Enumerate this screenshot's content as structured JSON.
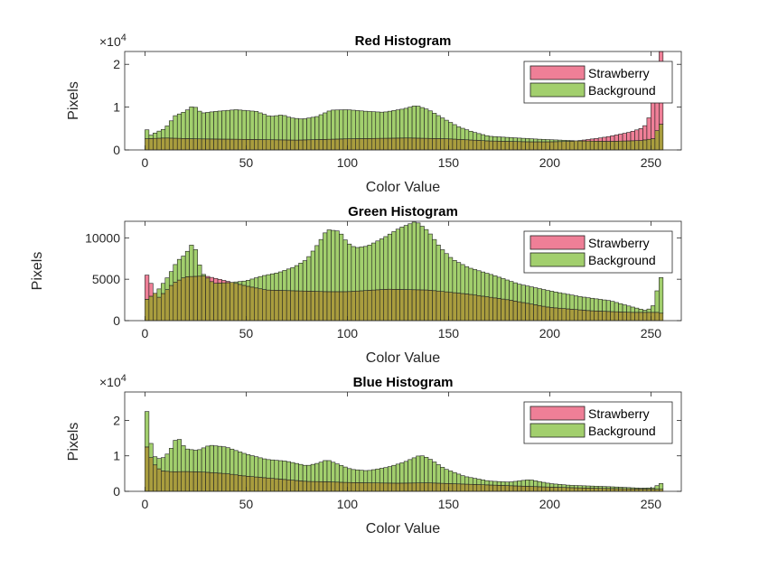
{
  "colors": {
    "strawberry": "#ef7f97",
    "background": "#a2cf6d",
    "overlap": "#a99d3e",
    "axis": "#262626",
    "edge": "#222222"
  },
  "chart_data": [
    {
      "type": "bar",
      "title": "Red Histogram",
      "xlabel": "Color Value",
      "ylabel": "Pixels",
      "y_exponent_label": "×10",
      "y_exponent_power": "4",
      "xlim": [
        -10,
        265
      ],
      "ylim": [
        0,
        23000
      ],
      "xticks": [
        0,
        50,
        100,
        150,
        200,
        250
      ],
      "yticks": [
        0,
        10000,
        20000
      ],
      "ytick_labels": [
        "0",
        "1",
        "2"
      ],
      "legend": {
        "location": "top-right",
        "entries": [
          "Strawberry",
          "Background"
        ]
      },
      "bin_width": 2,
      "series": [
        {
          "name": "Background",
          "anchors": [
            [
              0,
              6200
            ],
            [
              2,
              3200
            ],
            [
              6,
              4200
            ],
            [
              10,
              5000
            ],
            [
              15,
              8000
            ],
            [
              20,
              9000
            ],
            [
              24,
              10400
            ],
            [
              28,
              8600
            ],
            [
              35,
              9000
            ],
            [
              45,
              9400
            ],
            [
              55,
              9000
            ],
            [
              62,
              7800
            ],
            [
              68,
              8200
            ],
            [
              72,
              7500
            ],
            [
              78,
              7200
            ],
            [
              85,
              7800
            ],
            [
              92,
              9300
            ],
            [
              100,
              9400
            ],
            [
              110,
              9000
            ],
            [
              118,
              8800
            ],
            [
              128,
              9600
            ],
            [
              134,
              10400
            ],
            [
              140,
              9400
            ],
            [
              148,
              7200
            ],
            [
              155,
              5400
            ],
            [
              162,
              4200
            ],
            [
              170,
              3200
            ],
            [
              180,
              2900
            ],
            [
              195,
              2500
            ],
            [
              205,
              2300
            ],
            [
              215,
              2100
            ],
            [
              230,
              2000
            ],
            [
              245,
              2200
            ],
            [
              252,
              2700
            ],
            [
              254,
              6300
            ],
            [
              255,
              6000
            ]
          ]
        },
        {
          "name": "Strawberry",
          "anchors": [
            [
              0,
              2600
            ],
            [
              10,
              2800
            ],
            [
              25,
              2600
            ],
            [
              45,
              2500
            ],
            [
              75,
              2300
            ],
            [
              100,
              2600
            ],
            [
              130,
              2800
            ],
            [
              150,
              2600
            ],
            [
              170,
              2100
            ],
            [
              190,
              1900
            ],
            [
              200,
              1900
            ],
            [
              210,
              2000
            ],
            [
              215,
              2200
            ],
            [
              220,
              2500
            ],
            [
              225,
              2800
            ],
            [
              230,
              3200
            ],
            [
              235,
              3700
            ],
            [
              240,
              4200
            ],
            [
              245,
              5000
            ],
            [
              248,
              6000
            ],
            [
              250,
              9000
            ],
            [
              252,
              13500
            ],
            [
              254,
              23000
            ],
            [
              255,
              23000
            ]
          ]
        }
      ]
    },
    {
      "type": "bar",
      "title": "Green Histogram",
      "xlabel": "Color Value",
      "ylabel": "Pixels",
      "xlim": [
        -10,
        265
      ],
      "ylim": [
        0,
        12000
      ],
      "xticks": [
        0,
        50,
        100,
        150,
        200,
        250
      ],
      "yticks": [
        0,
        5000,
        10000
      ],
      "ytick_labels": [
        "0",
        "5000",
        "10000"
      ],
      "legend": {
        "location": "top-right",
        "entries": [
          "Strawberry",
          "Background"
        ]
      },
      "bin_width": 2,
      "series": [
        {
          "name": "Background",
          "anchors": [
            [
              0,
              2400
            ],
            [
              6,
              3500
            ],
            [
              12,
              5500
            ],
            [
              16,
              7200
            ],
            [
              20,
              8000
            ],
            [
              24,
              9500
            ],
            [
              28,
              5800
            ],
            [
              34,
              4500
            ],
            [
              42,
              4600
            ],
            [
              50,
              4800
            ],
            [
              58,
              5400
            ],
            [
              66,
              5800
            ],
            [
              74,
              6500
            ],
            [
              80,
              7400
            ],
            [
              86,
              9400
            ],
            [
              90,
              11000
            ],
            [
              96,
              10800
            ],
            [
              100,
              9400
            ],
            [
              104,
              8800
            ],
            [
              110,
              9000
            ],
            [
              118,
              10000
            ],
            [
              126,
              11200
            ],
            [
              134,
              12000
            ],
            [
              140,
              10800
            ],
            [
              146,
              8800
            ],
            [
              152,
              7400
            ],
            [
              160,
              6400
            ],
            [
              172,
              5500
            ],
            [
              185,
              4400
            ],
            [
              200,
              3600
            ],
            [
              215,
              2900
            ],
            [
              230,
              2400
            ],
            [
              240,
              1700
            ],
            [
              248,
              1200
            ],
            [
              252,
              2000
            ],
            [
              254,
              5200
            ],
            [
              255,
              5200
            ]
          ]
        },
        {
          "name": "Strawberry",
          "anchors": [
            [
              0,
              6000
            ],
            [
              4,
              4000
            ],
            [
              6,
              2600
            ],
            [
              10,
              3500
            ],
            [
              14,
              4500
            ],
            [
              20,
              5300
            ],
            [
              30,
              5400
            ],
            [
              40,
              4800
            ],
            [
              50,
              4200
            ],
            [
              60,
              3700
            ],
            [
              75,
              3600
            ],
            [
              90,
              3500
            ],
            [
              100,
              3500
            ],
            [
              120,
              3800
            ],
            [
              140,
              3700
            ],
            [
              160,
              3200
            ],
            [
              180,
              2500
            ],
            [
              200,
              1600
            ],
            [
              220,
              1200
            ],
            [
              240,
              1000
            ],
            [
              254,
              1000
            ],
            [
              255,
              900
            ]
          ]
        }
      ]
    },
    {
      "type": "bar",
      "title": "Blue Histogram",
      "xlabel": "Color Value",
      "ylabel": "Pixels",
      "y_exponent_label": "×10",
      "y_exponent_power": "4",
      "xlim": [
        -10,
        265
      ],
      "ylim": [
        0,
        28000
      ],
      "xticks": [
        0,
        50,
        100,
        150,
        200,
        250
      ],
      "yticks": [
        0,
        10000,
        20000
      ],
      "ytick_labels": [
        "0",
        "1",
        "2"
      ],
      "legend": {
        "location": "top-right",
        "entries": [
          "Strawberry",
          "Background"
        ]
      },
      "bin_width": 2,
      "series": [
        {
          "name": "Background",
          "anchors": [
            [
              0,
              28000
            ],
            [
              2,
              17000
            ],
            [
              4,
              10000
            ],
            [
              8,
              9000
            ],
            [
              12,
              11000
            ],
            [
              16,
              15500
            ],
            [
              20,
              12000
            ],
            [
              26,
              11500
            ],
            [
              32,
              13000
            ],
            [
              40,
              12500
            ],
            [
              50,
              10500
            ],
            [
              60,
              9000
            ],
            [
              70,
              8500
            ],
            [
              80,
              7200
            ],
            [
              86,
              8000
            ],
            [
              90,
              8900
            ],
            [
              96,
              7500
            ],
            [
              102,
              6200
            ],
            [
              110,
              5800
            ],
            [
              120,
              6800
            ],
            [
              128,
              8200
            ],
            [
              136,
              10200
            ],
            [
              140,
              9400
            ],
            [
              148,
              6400
            ],
            [
              158,
              4200
            ],
            [
              170,
              2900
            ],
            [
              180,
              2600
            ],
            [
              190,
              3300
            ],
            [
              200,
              2200
            ],
            [
              210,
              1700
            ],
            [
              230,
              1300
            ],
            [
              245,
              900
            ],
            [
              252,
              1000
            ],
            [
              254,
              2200
            ],
            [
              255,
              2200
            ]
          ]
        },
        {
          "name": "Strawberry",
          "anchors": [
            [
              0,
              14000
            ],
            [
              2,
              11000
            ],
            [
              4,
              8000
            ],
            [
              8,
              5800
            ],
            [
              14,
              5500
            ],
            [
              20,
              5600
            ],
            [
              30,
              5400
            ],
            [
              40,
              5000
            ],
            [
              50,
              4300
            ],
            [
              60,
              3800
            ],
            [
              70,
              3300
            ],
            [
              80,
              2800
            ],
            [
              90,
              2700
            ],
            [
              100,
              2500
            ],
            [
              110,
              2400
            ],
            [
              125,
              2300
            ],
            [
              140,
              2400
            ],
            [
              155,
              2100
            ],
            [
              170,
              1800
            ],
            [
              185,
              1500
            ],
            [
              200,
              1200
            ],
            [
              220,
              900
            ],
            [
              240,
              700
            ],
            [
              255,
              600
            ]
          ]
        }
      ]
    }
  ]
}
